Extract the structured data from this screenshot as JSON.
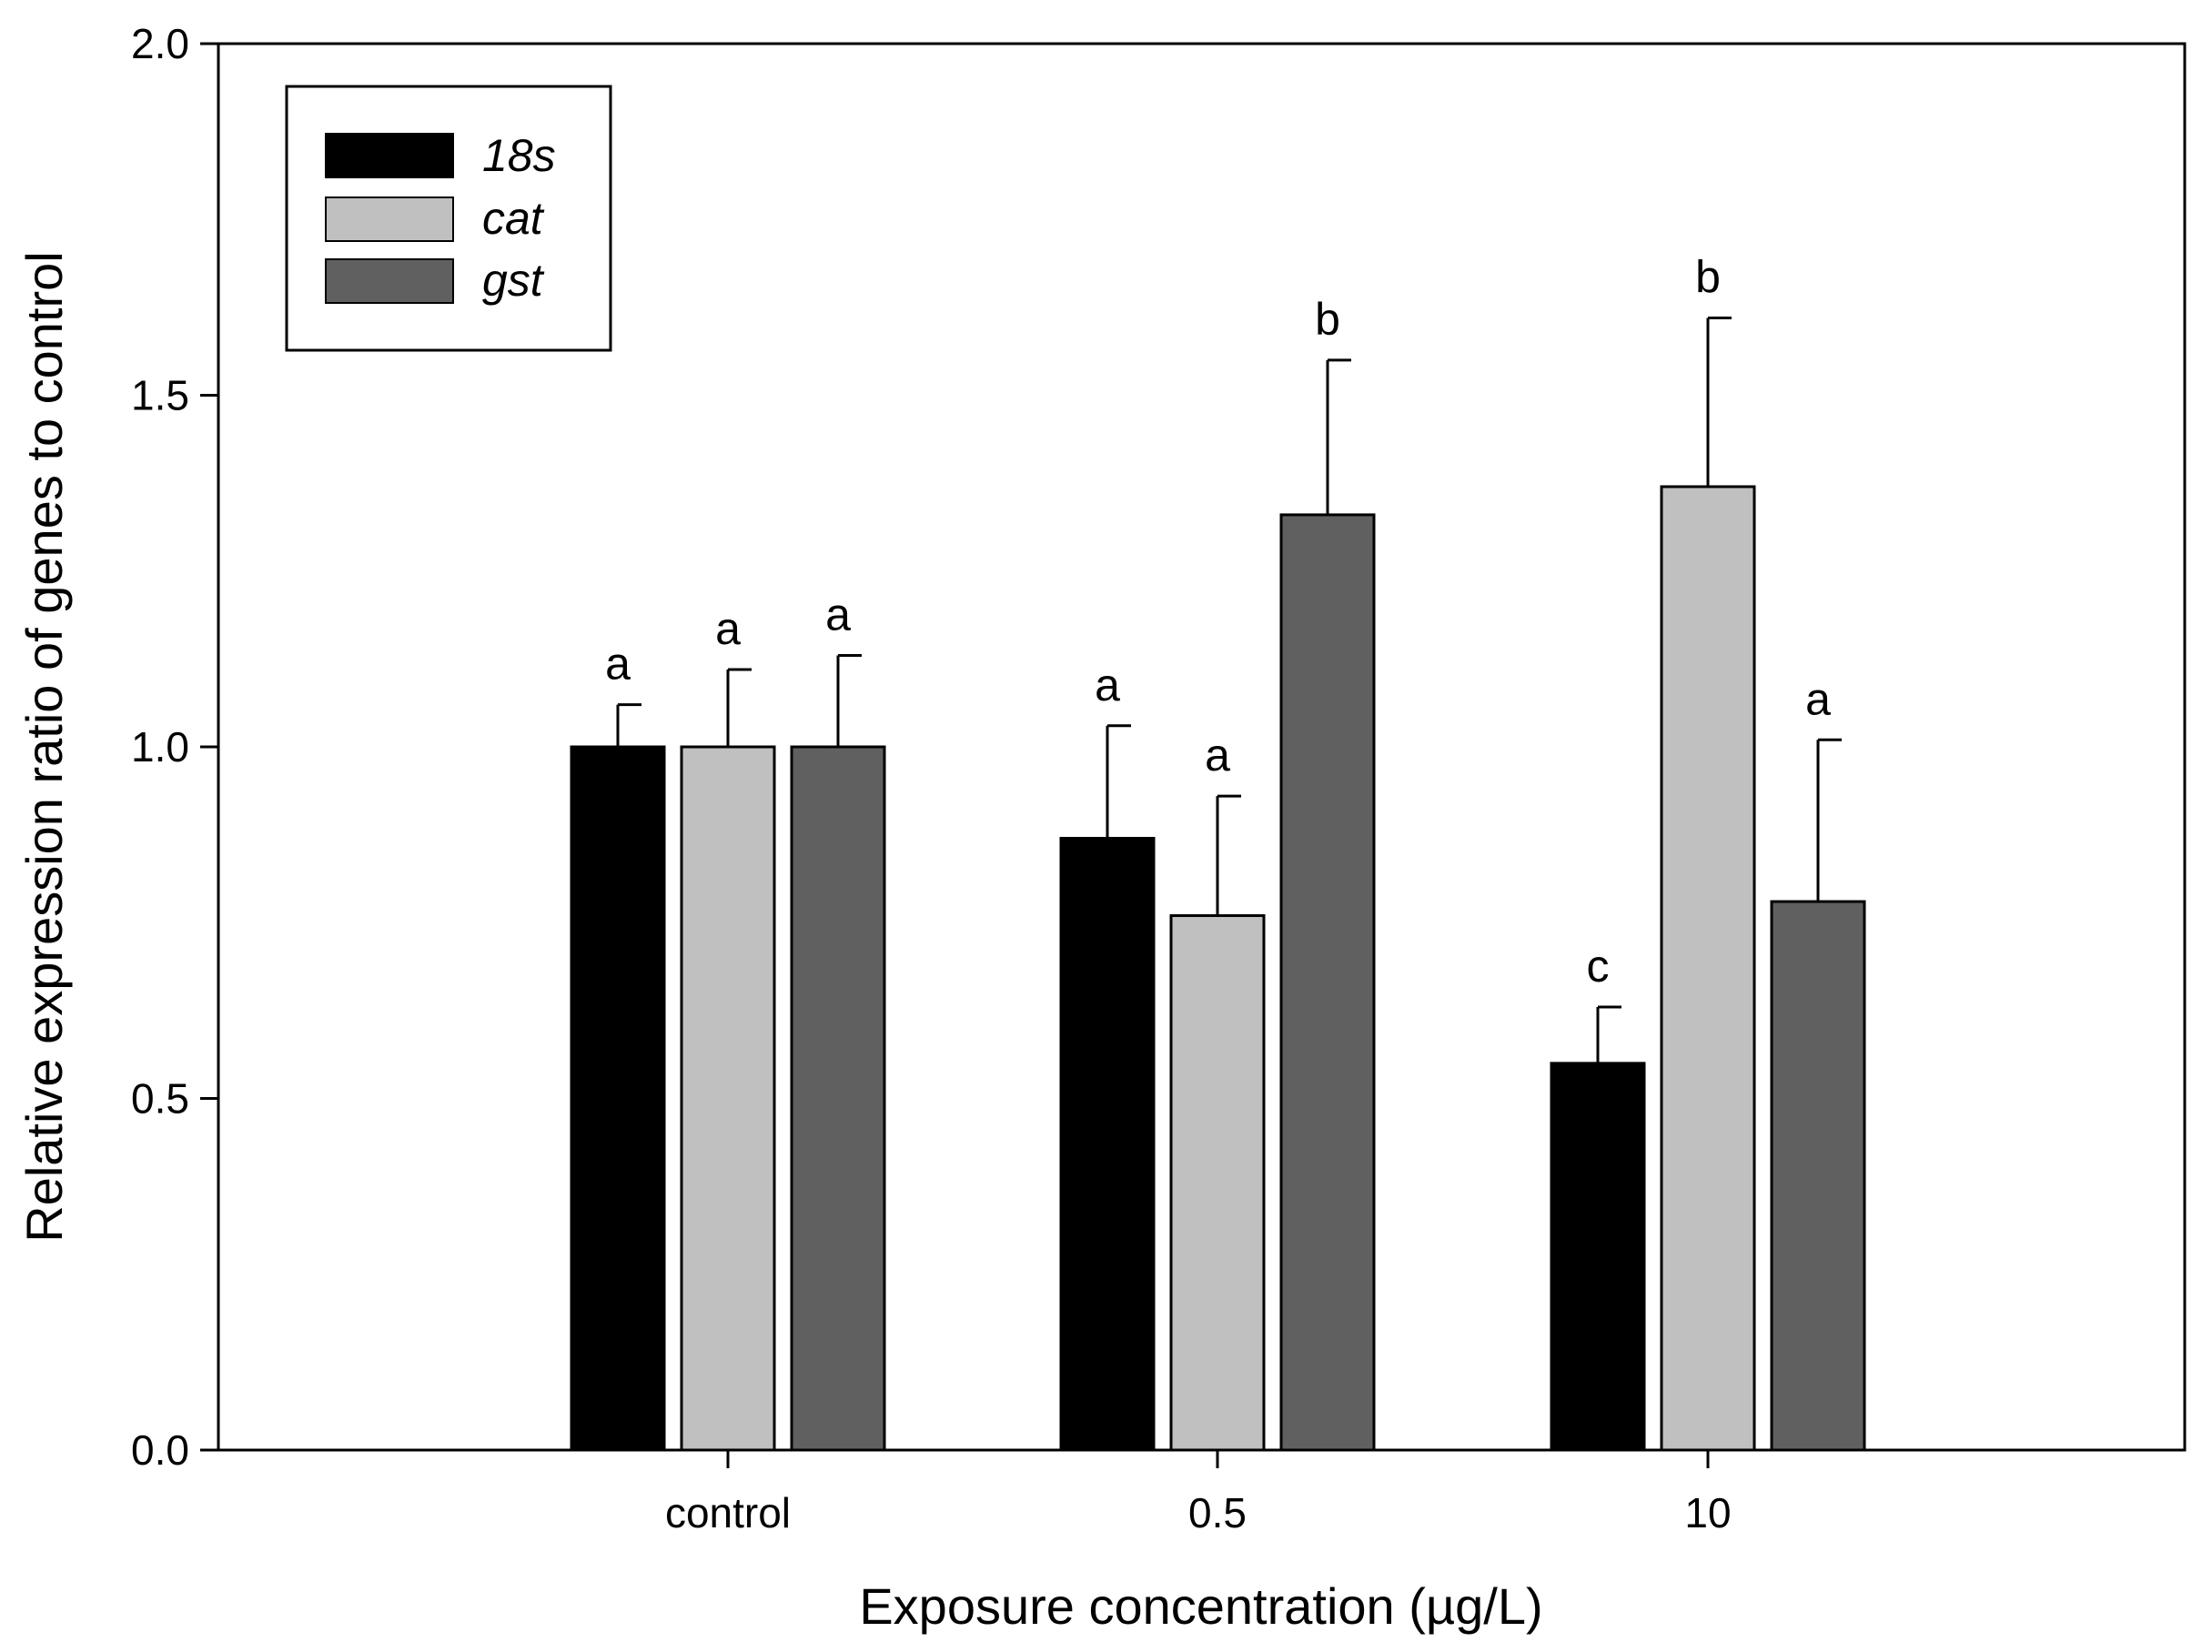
{
  "chart_data": {
    "type": "bar",
    "title": "",
    "xlabel": "Exposure concentration (µg/L)",
    "ylabel": "Relative expression ratio of genes to control",
    "ylim": [
      0,
      2.0
    ],
    "yticks": [
      "0.0",
      "0.5",
      "1.0",
      "1.5",
      "2.0"
    ],
    "grid": false,
    "legend_position": "top-left",
    "categories": [
      "control",
      "0.5",
      "10"
    ],
    "series": [
      {
        "name": "18s",
        "color": "#000000",
        "values": [
          1.0,
          0.87,
          0.55
        ],
        "errors": [
          0.06,
          0.16,
          0.08
        ],
        "letters": [
          "a",
          "a",
          "c"
        ]
      },
      {
        "name": "cat",
        "color": "#c0c0c0",
        "values": [
          1.0,
          0.76,
          1.37
        ],
        "errors": [
          0.11,
          0.17,
          0.24
        ],
        "letters": [
          "a",
          "a",
          "b"
        ]
      },
      {
        "name": "gst",
        "color": "#606060",
        "values": [
          1.0,
          1.33,
          0.78
        ],
        "errors": [
          0.13,
          0.22,
          0.23
        ],
        "letters": [
          "a",
          "b",
          "a"
        ]
      }
    ]
  }
}
